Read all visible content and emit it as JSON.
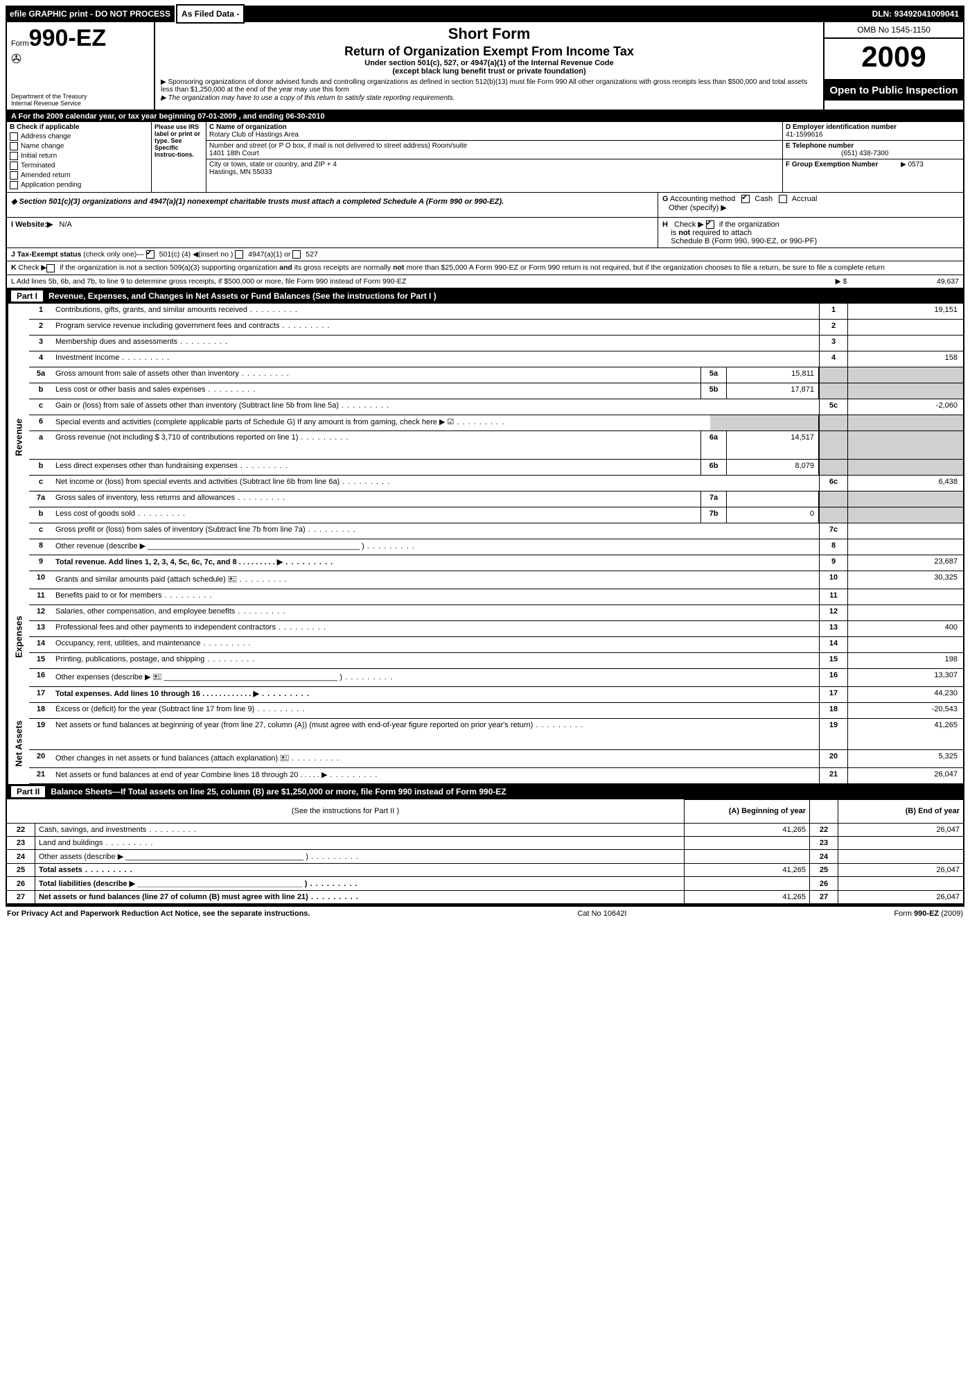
{
  "topbar": {
    "efile": "efile GRAPHIC print - DO NOT PROCESS",
    "asfiled": "As Filed Data -",
    "dln": "DLN: 93492041009041"
  },
  "header": {
    "form_prefix": "Form",
    "form_no": "990-EZ",
    "dept": "Department of the Treasury",
    "irs": "Internal Revenue Service",
    "short_form": "Short Form",
    "title": "Return of Organization Exempt From Income Tax",
    "sub1": "Under section 501(c), 527, or 4947(a)(1) of the Internal Revenue Code",
    "sub2": "(except black lung benefit trust or private foundation)",
    "note1": "▶ Sponsoring organizations of donor advised funds and controlling organizations as defined in section 512(b)(13) must file Form 990  All other organizations with gross receipts less than $500,000 and total assets less than $1,250,000 at the end of the year may use this form",
    "note2": "▶ The organization may have to use a copy of this return to satisfy state reporting requirements.",
    "omb": "OMB No  1545-1150",
    "year": "2009",
    "open": "Open to Public Inspection"
  },
  "sectionA": {
    "banner": "A  For the 2009 calendar year, or tax year beginning 07-01-2009                   , and ending 06-30-2010",
    "b_label": "B  Check if applicable",
    "checks": [
      "Address change",
      "Name change",
      "Initial return",
      "Terminated",
      "Amended return",
      "Application pending"
    ],
    "inst": "Please use IRS label or print or type. See Specific Instruc-tions.",
    "c_name_lbl": "C Name of organization",
    "c_name": "Rotary Club of Hastings Area",
    "c_addr_lbl": "Number and street (or P O  box, if mail is not delivered to street address)  Room/suite",
    "c_addr": "1401 18th Court",
    "c_city_lbl": "City or town, state or country, and ZIP + 4",
    "c_city": "Hastings, MN  55033",
    "d_lbl": "D Employer identification number",
    "d_val": "41-1599616",
    "e_lbl": "E Telephone number",
    "e_val": "(651) 438-7300",
    "f_lbl": "F Group Exemption Number",
    "f_val": "▶ 0573"
  },
  "midblock": {
    "s501": "◆ Section 501(c)(3) organizations and 4947(a)(1) nonexempt charitable trusts must attach a completed Schedule A (Form 990 or 990-EZ).",
    "g": "G Accounting method        Other (specify) ▶",
    "g_cash": "Cash",
    "g_accrual": "Accrual",
    "website_lbl": "I Website:▶",
    "website": "N/A",
    "h": "H   Check ▶         if the organization is not required to attach Schedule B (Form 990, 990-EZ, or 990-PF)",
    "j": "J Tax-Exempt status (check only one)—       501(c) (4) ◀(insert no )       4947(a)(1) or        527",
    "k": "K Check ▶       if the organization is not a section 509(a)(3) supporting organization and its gross receipts are normally not more than $25,000  A Form 990-EZ or Form 990 return is not required, but if the organization chooses to file a return, be sure to file a complete return",
    "l": "L Add lines 5b, 6b, and 7b, to line 9 to determine gross receipts, if $500,000 or more, file Form 990 instead of Form 990-EZ",
    "l_val": "49,637"
  },
  "partI": {
    "header": "Revenue, Expenses, and Changes in Net Assets or Fund Balances (See the instructions for Part I )",
    "side_rev": "Revenue",
    "side_exp": "Expenses",
    "side_net": "Net Assets",
    "lines": [
      {
        "no": "1",
        "txt": "Contributions, gifts, grants, and similar amounts received",
        "n2": "1",
        "val": "19,151"
      },
      {
        "no": "2",
        "txt": "Program service revenue including government fees and contracts",
        "n2": "2",
        "val": ""
      },
      {
        "no": "3",
        "txt": "Membership dues and assessments",
        "n2": "3",
        "val": ""
      },
      {
        "no": "4",
        "txt": "Investment income",
        "n2": "4",
        "val": "158"
      },
      {
        "no": "5a",
        "txt": "Gross amount from sale of assets other than inventory",
        "mid_no": "5a",
        "mid_val": "15,811",
        "shade": true
      },
      {
        "no": "b",
        "txt": "Less  cost or other basis and sales expenses",
        "mid_no": "5b",
        "mid_val": "17,871",
        "shade": true
      },
      {
        "no": "c",
        "txt": "Gain or (loss) from sale of assets other than inventory (Subtract line 5b from line 5a)",
        "n2": "5c",
        "val": "-2,060"
      },
      {
        "no": "6",
        "txt": "Special events and activities (complete applicable parts of Schedule G)  If any amount is from gaming, check here  ▶  ☑",
        "shade_only": true
      },
      {
        "no": "a",
        "txt": "Gross revenue (not including $ 3,710 of contributions reported on line 1)",
        "mid_no": "6a",
        "mid_val": "14,517",
        "shade": true,
        "tall": true
      },
      {
        "no": "b",
        "txt": "Less  direct expenses other than fundraising expenses",
        "mid_no": "6b",
        "mid_val": "8,079",
        "shade": true
      },
      {
        "no": "c",
        "txt": "Net income or (loss) from special events and activities (Subtract line 6b from line 6a)",
        "n2": "6c",
        "val": "6,438"
      },
      {
        "no": "7a",
        "txt": "Gross sales of inventory, less returns and allowances",
        "mid_no": "7a",
        "mid_val": "",
        "shade": true
      },
      {
        "no": "b",
        "txt": "Less  cost of goods sold",
        "mid_no": "7b",
        "mid_val": "0",
        "shade": true
      },
      {
        "no": "c",
        "txt": "Gross profit or (loss) from sales of inventory (Subtract line 7b from line 7a)",
        "n2": "7c",
        "val": ""
      },
      {
        "no": "8",
        "txt": "Other revenue (describe ▶ __________________________________________________ )",
        "n2": "8",
        "val": ""
      },
      {
        "no": "9",
        "txt": "Total revenue. Add lines 1, 2, 3, 4, 5c, 6c, 7c, and 8     .   .   .   .   .   .   .   .   .   ▶",
        "n2": "9",
        "val": "23,687",
        "bold": true
      }
    ],
    "exp": [
      {
        "no": "10",
        "txt": "Grants and similar amounts paid (attach schedule) 🖭",
        "n2": "10",
        "val": "30,325"
      },
      {
        "no": "11",
        "txt": "Benefits paid to or for members",
        "n2": "11",
        "val": ""
      },
      {
        "no": "12",
        "txt": "Salaries, other compensation, and employee benefits",
        "n2": "12",
        "val": ""
      },
      {
        "no": "13",
        "txt": "Professional fees and other payments to independent contractors",
        "n2": "13",
        "val": "400"
      },
      {
        "no": "14",
        "txt": "Occupancy, rent, utilities, and maintenance",
        "n2": "14",
        "val": ""
      },
      {
        "no": "15",
        "txt": "Printing, publications, postage, and shipping",
        "n2": "15",
        "val": "198"
      },
      {
        "no": "16",
        "txt": "Other expenses (describe ▶ 🖭 _________________________________________ )",
        "n2": "16",
        "val": "13,307"
      },
      {
        "no": "17",
        "txt": "Total expenses. Add lines 10 through 16    .   .   .   .   .   .   .   .   .   .   .   .   ▶",
        "n2": "17",
        "val": "44,230",
        "bold": true
      }
    ],
    "net": [
      {
        "no": "18",
        "txt": "Excess or (deficit) for the year (Subtract line 17 from line 9)",
        "n2": "18",
        "val": "-20,543"
      },
      {
        "no": "19",
        "txt": "Net assets or fund balances at beginning of year (from line 27, column (A)) (must agree with end-of-year figure reported on prior year's return)",
        "n2": "19",
        "val": "41,265",
        "tall": true
      },
      {
        "no": "20",
        "txt": "Other changes in net assets or fund balances (attach explanation) 🖭",
        "n2": "20",
        "val": "5,325"
      },
      {
        "no": "21",
        "txt": "Net assets or fund balances at end of year  Combine lines 18 through 20    .   .   .   .   . ▶",
        "n2": "21",
        "val": "26,047"
      }
    ]
  },
  "partII": {
    "header": "Balance Sheets—If Total assets on line 25, column (B) are $1,250,000 or more, file Form 990 instead of Form 990-EZ",
    "instr": "(See the instructions for Part II )",
    "colA": "(A) Beginning of year",
    "colB": "(B) End of year",
    "rows": [
      {
        "no": "22",
        "txt": "Cash, savings, and investments",
        "a": "41,265",
        "b": "26,047"
      },
      {
        "no": "23",
        "txt": "Land and buildings",
        "a": "",
        "b": ""
      },
      {
        "no": "24",
        "txt": "Other assets (describe ▶ __________________________________________ )",
        "a": "",
        "b": ""
      },
      {
        "no": "25",
        "txt": "Total assets",
        "a": "41,265",
        "b": "26,047",
        "bold": true
      },
      {
        "no": "26",
        "txt": "Total liabilities (describe ▶ _______________________________________ )",
        "a": "",
        "b": "",
        "bold": true
      },
      {
        "no": "27",
        "txt": "Net assets or fund balances (line 27 of column (B) must agree with line 21)",
        "a": "41,265",
        "b": "26,047",
        "bold": true
      }
    ]
  },
  "footer": {
    "left": "For Privacy Act and Paperwork Reduction Act Notice, see the separate instructions.",
    "mid": "Cat No 10642I",
    "right": "Form 990-EZ (2009)"
  }
}
